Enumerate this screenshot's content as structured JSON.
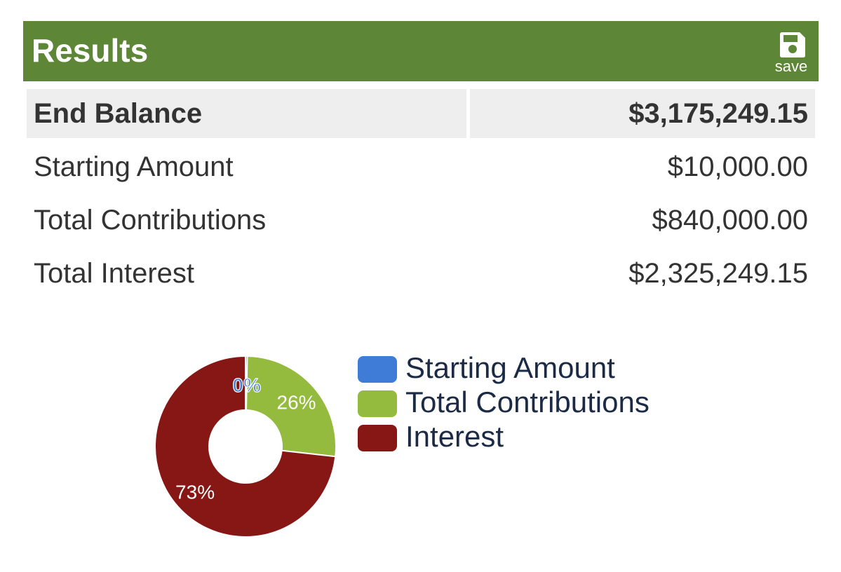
{
  "header": {
    "title": "Results",
    "save_label": "save",
    "background_color": "#5d8637"
  },
  "summary": {
    "end_balance_label": "End Balance",
    "end_balance_value": "$3,175,249.15",
    "rows": [
      {
        "label": "Starting Amount",
        "value": "$10,000.00"
      },
      {
        "label": "Total Contributions",
        "value": "$840,000.00"
      },
      {
        "label": "Total Interest",
        "value": "$2,325,249.15"
      }
    ]
  },
  "chart_data": {
    "type": "pie",
    "donut": true,
    "categories": [
      "Starting Amount",
      "Total Contributions",
      "Interest"
    ],
    "values": [
      10000.0,
      840000.0,
      2325249.15
    ],
    "slice_labels": [
      "0%",
      "26%",
      "73%"
    ],
    "colors": [
      "#3f7cd8",
      "#94bb3e",
      "#871714"
    ],
    "legend_position": "right"
  }
}
